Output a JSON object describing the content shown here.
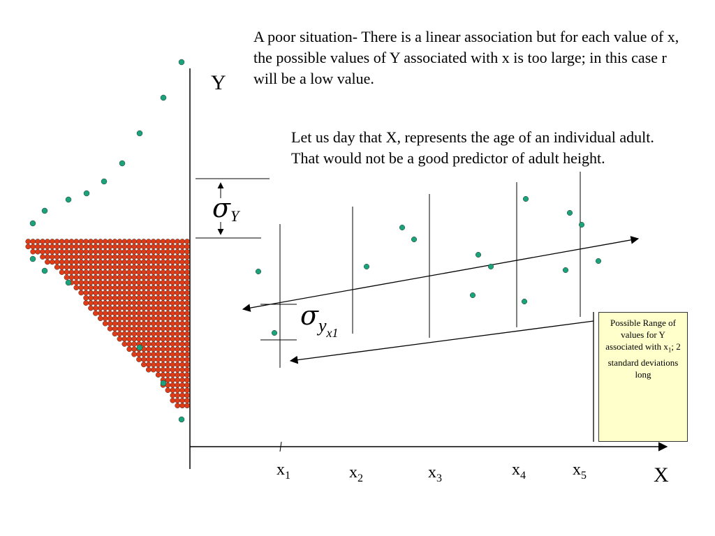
{
  "text": {
    "top_paragraph": "A poor situation- There is a linear association but for each value of x, the possible values of Y associated with x is too large; in this case r will be a low value.",
    "second_paragraph": "Let us day that X, represents the age of an individual adult.  That would not be a good predictor of adult height."
  },
  "axes": {
    "y_label": "Y",
    "x_label": "X",
    "x_ticks": [
      {
        "base": "x",
        "sub": "1"
      },
      {
        "base": "x",
        "sub": "2"
      },
      {
        "base": "x",
        "sub": "3"
      },
      {
        "base": "x",
        "sub": "4"
      },
      {
        "base": "x",
        "sub": "5"
      }
    ]
  },
  "sigma_labels": {
    "sigma_y": {
      "symbol": "σ",
      "sub": "Y"
    },
    "sigma_yx1": {
      "symbol": "σ",
      "sub": "y",
      "subsub": "x1"
    }
  },
  "callout": {
    "line1": "Possible Range of values for Y associated with x",
    "sub": "1",
    "line2": ";  2 standard deviations long"
  },
  "colors": {
    "green_dot": "#1aa37a",
    "red_dot": "#e03a17",
    "callout_fill": "#ffffcc"
  }
}
